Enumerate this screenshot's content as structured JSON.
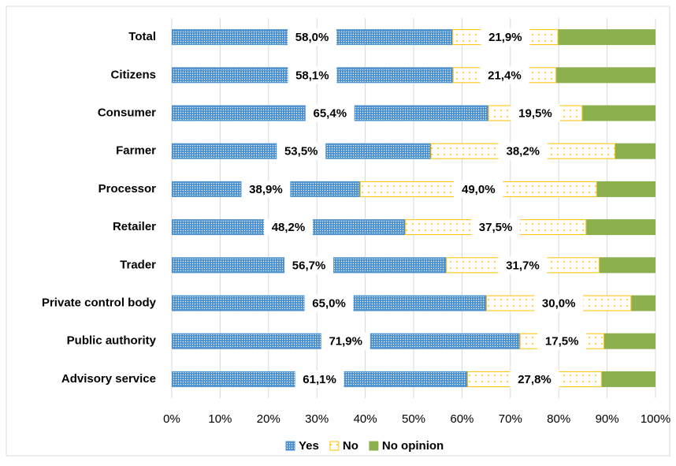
{
  "chart_data": {
    "type": "stacked_bar_horizontal",
    "categories": [
      "Total",
      "Citizens",
      "Consumer",
      "Farmer",
      "Processor",
      "Retailer",
      "Trader",
      "Private control body",
      "Public authority",
      "Advisory service"
    ],
    "series": [
      {
        "name": "Yes",
        "color": "#4a90d0",
        "values": [
          58.0,
          58.1,
          65.4,
          53.5,
          38.9,
          48.2,
          56.7,
          65.0,
          71.9,
          61.1
        ],
        "value_labels": [
          "58,0%",
          "58,1%",
          "65,4%",
          "53,5%",
          "38,9%",
          "48,2%",
          "56,7%",
          "65,0%",
          "71,9%",
          "61,1%"
        ]
      },
      {
        "name": "No",
        "color": "#ffc000",
        "values": [
          21.9,
          21.4,
          19.5,
          38.2,
          49.0,
          37.5,
          31.7,
          30.0,
          17.5,
          27.8
        ],
        "value_labels": [
          "21,9%",
          "21,4%",
          "19,5%",
          "38,2%",
          "49,0%",
          "37,5%",
          "31,7%",
          "30,0%",
          "17,5%",
          "27,8%"
        ]
      },
      {
        "name": "No opinion",
        "color": "#8db04e",
        "values": [
          20.1,
          20.5,
          15.1,
          8.3,
          12.1,
          14.3,
          11.6,
          5.0,
          10.6,
          11.1
        ]
      }
    ],
    "xlim": [
      0,
      100
    ],
    "xticks": [
      {
        "value": 0,
        "label": "0%"
      },
      {
        "value": 10,
        "label": "10%"
      },
      {
        "value": 20,
        "label": "20%"
      },
      {
        "value": 30,
        "label": "30%"
      },
      {
        "value": 40,
        "label": "40%"
      },
      {
        "value": 50,
        "label": "50%"
      },
      {
        "value": 60,
        "label": "60%"
      },
      {
        "value": 70,
        "label": "70%"
      },
      {
        "value": 80,
        "label": "80%"
      },
      {
        "value": 90,
        "label": "90%"
      },
      {
        "value": 100,
        "label": "100%"
      }
    ],
    "grid": true,
    "legend": "bottom"
  }
}
